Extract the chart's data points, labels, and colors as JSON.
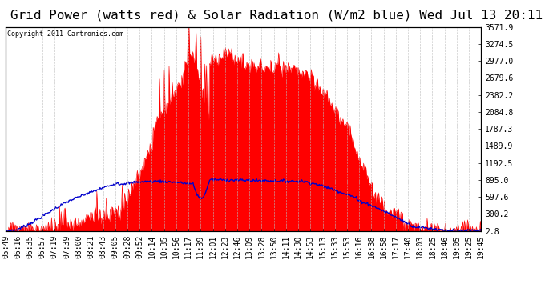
{
  "title": "Grid Power (watts red) & Solar Radiation (W/m2 blue) Wed Jul 13 20:11",
  "copyright": "Copyright 2011 Cartronics.com",
  "y_right_ticks": [
    2.8,
    300.2,
    597.6,
    895.0,
    1192.5,
    1489.9,
    1787.3,
    2084.8,
    2382.2,
    2679.6,
    2977.0,
    3274.5,
    3571.9
  ],
  "ymax": 3571.9,
  "ymin": 0,
  "background_color": "#ffffff",
  "grid_color": "#bbbbbb",
  "red_color": "#ff0000",
  "blue_color": "#0000cc",
  "title_fontsize": 11.5,
  "tick_fontsize": 7,
  "x_labels": [
    "05:49",
    "06:16",
    "06:35",
    "06:57",
    "07:19",
    "07:39",
    "08:00",
    "08:21",
    "08:43",
    "09:05",
    "09:28",
    "09:52",
    "10:14",
    "10:35",
    "10:56",
    "11:17",
    "11:39",
    "12:01",
    "12:23",
    "12:46",
    "13:09",
    "13:28",
    "13:50",
    "14:11",
    "14:30",
    "14:53",
    "15:13",
    "15:33",
    "15:53",
    "16:16",
    "16:38",
    "16:58",
    "17:17",
    "17:40",
    "18:03",
    "18:25",
    "18:46",
    "19:05",
    "19:25",
    "19:45"
  ]
}
